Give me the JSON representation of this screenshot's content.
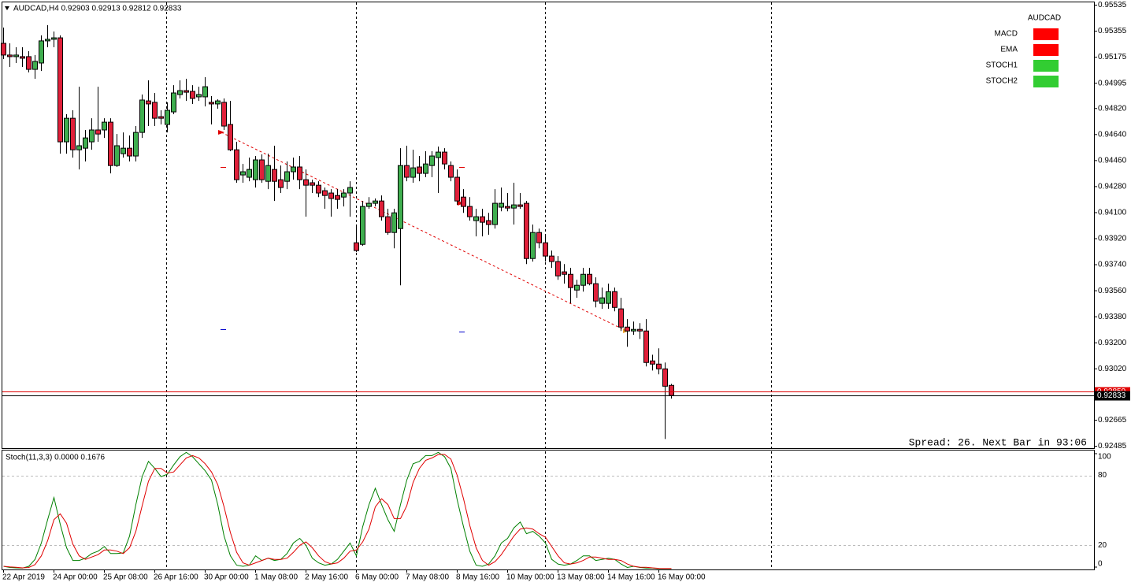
{
  "chart_data": [
    {
      "type": "candlestick",
      "title": "AUDCAD,H4  0.92903 0.92913 0.92812 0.92833",
      "categories": [
        "22 Apr 2019",
        null,
        null,
        null,
        null,
        null,
        null,
        null,
        "24 Apr 00:00",
        null,
        null,
        null,
        null,
        null,
        null,
        null,
        "25 Apr 08:00",
        null,
        null,
        null,
        null,
        null,
        null,
        null,
        "26 Apr 16:00",
        null,
        null,
        null,
        null,
        null,
        null,
        null,
        "30 Apr 00:00",
        null,
        null,
        null,
        null,
        null,
        null,
        null,
        "1 May 08:00",
        null,
        null,
        null,
        null,
        null,
        null,
        null,
        "2 May 16:00",
        null,
        null,
        null,
        null,
        null,
        null,
        null,
        "6 May 00:00",
        null,
        null,
        null,
        null,
        null,
        null,
        null,
        "7 May 08:00",
        null,
        null,
        null,
        null,
        null,
        null,
        null,
        "8 May 16:00",
        null,
        null,
        null,
        null,
        null,
        null,
        null,
        "10 May 00:00",
        null,
        null,
        null,
        null,
        null,
        null,
        null,
        "13 May 08:00",
        null,
        null,
        null,
        null,
        null,
        null,
        null,
        "14 May 16:00",
        null,
        null,
        null,
        null,
        null,
        null,
        null,
        "16 May 00:00",
        null,
        null
      ],
      "open": [
        0.95268,
        0.95187,
        0.95176,
        0.95176,
        0.95176,
        0.95088,
        0.95132,
        0.95285,
        0.95296,
        0.95306,
        0.94587,
        0.9475,
        0.94532,
        0.94543,
        0.94587,
        0.94669,
        0.94669,
        0.94723,
        0.94423,
        0.94505,
        0.94543,
        0.94489,
        0.94652,
        0.9487,
        0.9486,
        0.94761,
        0.94707,
        0.94794,
        0.94914,
        0.94941,
        0.94936,
        0.94898,
        0.94898,
        0.9486,
        0.94849,
        0.9486,
        0.94707,
        0.94532,
        0.94358,
        0.94342,
        0.94325,
        0.94462,
        0.94314,
        0.94396,
        0.94325,
        0.94314,
        0.9438,
        0.94413,
        0.94325,
        0.94304,
        0.94287,
        0.94249,
        0.94233,
        0.94216,
        0.94205,
        0.94233,
        0.93889,
        0.93878,
        0.9414,
        0.94162,
        0.94178,
        0.94069,
        0.9396,
        0.93987,
        0.94423,
        0.94342,
        0.94413,
        0.94369,
        0.94423,
        0.94478,
        0.94516,
        0.94423,
        0.94342,
        0.94205,
        0.9414,
        0.94042,
        0.94069,
        0.94042,
        0.94015,
        0.94135,
        0.9414,
        0.94129,
        0.94151,
        0.94162,
        0.9378,
        0.9396,
        0.93889,
        0.93797,
        0.93759,
        0.93688,
        0.93671,
        0.93562,
        0.93595,
        0.93671,
        0.93606,
        0.9347,
        0.9347,
        0.93551,
        0.93432,
        0.93306,
        0.93279,
        0.9329,
        0.93279,
        0.93072,
        0.9305,
        0.93017,
        0.92903
      ],
      "high": [
        0.95377,
        0.95268,
        0.95241,
        0.95241,
        0.95214,
        0.95187,
        0.95323,
        0.95394,
        0.9535,
        0.95323,
        0.94778,
        0.94805,
        0.94968,
        0.94669,
        0.9475,
        0.94968,
        0.9475,
        0.9475,
        0.94641,
        0.94652,
        0.94631,
        0.94696,
        0.94914,
        0.95012,
        0.94925,
        0.94805,
        0.9486,
        0.94979,
        0.95012,
        0.95023,
        0.94979,
        0.94968,
        0.95034,
        0.94903,
        0.94881,
        0.94887,
        0.9487,
        0.94587,
        0.94434,
        0.94478,
        0.94489,
        0.945,
        0.94505,
        0.9456,
        0.94423,
        0.94451,
        0.94478,
        0.94489,
        0.94396,
        0.94325,
        0.94314,
        0.94271,
        0.9426,
        0.9426,
        0.9426,
        0.94314,
        0.94015,
        0.94178,
        0.94205,
        0.94195,
        0.94216,
        0.94124,
        0.94124,
        0.94543,
        0.9456,
        0.94532,
        0.94489,
        0.94522,
        0.94522,
        0.94554,
        0.94543,
        0.94451,
        0.94396,
        0.9426,
        0.94205,
        0.94124,
        0.94124,
        0.94096,
        0.9426,
        0.94271,
        0.94233,
        0.94304,
        0.94233,
        0.94178,
        0.94015,
        0.93987,
        0.93944,
        0.93835,
        0.93797,
        0.93742,
        0.93715,
        0.93633,
        0.93715,
        0.93715,
        0.9365,
        0.93579,
        0.93606,
        0.93579,
        0.93508,
        0.93361,
        0.93344,
        0.93333,
        0.93361,
        0.93115,
        0.93159,
        0.93061,
        0.92913
      ],
      "low": [
        0.95159,
        0.95105,
        0.95132,
        0.95105,
        0.95067,
        0.95023,
        0.95077,
        0.95241,
        0.95241,
        0.94505,
        0.94505,
        0.94478,
        0.94396,
        0.94451,
        0.94532,
        0.94587,
        0.94614,
        0.94369,
        0.94413,
        0.94478,
        0.94451,
        0.94451,
        0.94614,
        0.94696,
        0.94696,
        0.94707,
        0.94652,
        0.94778,
        0.94887,
        0.9487,
        0.94849,
        0.9487,
        0.94832,
        0.94707,
        0.94816,
        0.94669,
        0.94522,
        0.94304,
        0.94304,
        0.94314,
        0.94271,
        0.94304,
        0.9426,
        0.94178,
        0.94233,
        0.9426,
        0.94325,
        0.9426,
        0.94069,
        0.94233,
        0.94205,
        0.94124,
        0.94069,
        0.94124,
        0.9414,
        0.94069,
        0.93824,
        0.93868,
        0.94124,
        0.9414,
        0.94042,
        0.93944,
        0.93851,
        0.93595,
        0.94314,
        0.94304,
        0.94314,
        0.94342,
        0.94342,
        0.94233,
        0.94396,
        0.94314,
        0.94151,
        0.94096,
        0.94042,
        0.93933,
        0.93933,
        0.93944,
        0.93987,
        0.94107,
        0.94107,
        0.94015,
        0.94124,
        0.93742,
        0.93759,
        0.93851,
        0.93759,
        0.93715,
        0.93633,
        0.93606,
        0.9347,
        0.93508,
        0.93551,
        0.93595,
        0.93442,
        0.93432,
        0.93432,
        0.93415,
        0.93279,
        0.9317,
        0.93252,
        0.93224,
        0.93034,
        0.93006,
        0.92979,
        0.92532,
        0.92812
      ],
      "close": [
        0.95187,
        0.95176,
        0.95187,
        0.95165,
        0.95088,
        0.95143,
        0.95285,
        0.95296,
        0.95306,
        0.94587,
        0.9475,
        0.94532,
        0.9456,
        0.94614,
        0.94669,
        0.94641,
        0.94723,
        0.94423,
        0.9456,
        0.94543,
        0.94489,
        0.94652,
        0.94876,
        0.94849,
        0.9475,
        0.9475,
        0.94805,
        0.94925,
        0.94941,
        0.9493,
        0.94887,
        0.94914,
        0.94968,
        0.94849,
        0.9487,
        0.94696,
        0.94532,
        0.94325,
        0.9438,
        0.94396,
        0.94462,
        0.94325,
        0.94423,
        0.94314,
        0.94271,
        0.9438,
        0.94413,
        0.94325,
        0.94287,
        0.94287,
        0.94233,
        0.94216,
        0.94195,
        0.94189,
        0.94233,
        0.94271,
        0.93835,
        0.9414,
        0.94162,
        0.94178,
        0.94069,
        0.9396,
        0.94096,
        0.94423,
        0.94342,
        0.94407,
        0.94369,
        0.94434,
        0.94489,
        0.94516,
        0.94434,
        0.94342,
        0.94178,
        0.9414,
        0.94069,
        0.94069,
        0.94031,
        0.94015,
        0.94162,
        0.94162,
        0.94129,
        0.94151,
        0.9414,
        0.9378,
        0.9396,
        0.93889,
        0.93797,
        0.93759,
        0.9366,
        0.93671,
        0.93579,
        0.93595,
        0.93671,
        0.93606,
        0.93486,
        0.93508,
        0.93551,
        0.93442,
        0.93306,
        0.93279,
        0.9329,
        0.93279,
        0.93061,
        0.9305,
        0.93017,
        0.92897,
        0.92833
      ],
      "up_color": "#3fae4f",
      "down_color": "#e0203a",
      "ylim": [
        0.92485,
        0.95535
      ],
      "yticks": [
        0.95535,
        0.95355,
        0.95175,
        0.94995,
        {
          "value": 0.9482,
          "label": "0.94820"
        },
        {
          "value": 0.9464,
          "label": "0.94640"
        },
        {
          "value": 0.9446,
          "label": "0.94460"
        },
        {
          "value": 0.9428,
          "label": "0.94280"
        },
        {
          "value": 0.941,
          "label": "0.94100"
        },
        {
          "value": 0.9392,
          "label": "0.93920"
        },
        {
          "value": 0.9374,
          "label": "0.93740"
        },
        {
          "value": 0.9356,
          "label": "0.93560"
        },
        {
          "value": 0.9338,
          "label": "0.93380"
        },
        {
          "value": 0.932,
          "label": "0.93200"
        },
        {
          "value": 0.9302,
          "label": "0.93020"
        },
        0.92665,
        0.92485
      ],
      "lines": [
        {
          "value": 0.92859,
          "color": "#e00000"
        },
        {
          "value": 0.92833,
          "color": "#000000"
        }
      ]
    },
    {
      "type": "line",
      "title": "Stoch(11,3,3) 0.0000 0.1676",
      "series": [
        {
          "color": "#008000",
          "values": [
            2,
            1,
            0.7,
            0.5,
            2,
            8,
            22,
            42,
            61,
            38,
            18,
            7,
            7,
            9,
            13,
            15,
            19,
            13,
            13,
            13.5,
            28,
            55,
            79,
            92,
            86,
            79,
            81,
            89,
            96,
            99.8,
            96,
            90,
            84,
            76,
            55,
            28,
            11,
            3,
            2,
            3,
            11,
            7,
            9,
            7,
            8,
            13,
            22,
            26,
            20,
            9,
            5,
            3,
            4,
            8,
            15,
            22,
            11,
            36,
            55,
            69,
            55,
            42,
            32,
            55,
            76,
            90,
            92,
            97,
            97,
            99.8,
            96,
            86,
            59,
            36,
            15,
            3,
            2,
            4,
            11,
            22,
            26,
            35,
            40,
            30,
            32,
            28,
            22,
            8,
            4,
            3,
            4,
            7,
            11,
            11,
            7,
            8,
            9,
            8,
            4,
            1,
            2,
            1,
            0.5,
            0.5,
            0,
            0,
            0
          ]
        },
        {
          "color": "#e00000",
          "values": [
            2,
            1.5,
            1.2,
            0.7,
            1,
            3.5,
            11,
            24,
            42,
            47,
            39,
            21,
            11,
            8,
            10,
            12,
            16,
            16,
            15,
            13,
            18,
            32,
            54,
            75,
            86,
            86,
            82,
            83,
            89,
            95,
            97,
            95,
            90,
            83,
            72,
            53,
            31,
            14,
            5,
            3,
            5,
            7,
            9,
            8,
            8,
            9,
            14,
            20,
            23,
            18,
            11,
            6,
            4,
            5,
            9,
            15,
            16,
            23,
            34,
            53,
            60,
            55,
            43,
            43,
            54,
            74,
            86,
            93,
            95,
            98,
            98,
            94,
            80,
            60,
            37,
            18,
            7,
            3,
            6,
            12,
            20,
            28,
            34,
            35,
            34,
            30,
            27,
            19,
            11,
            5,
            4,
            5,
            7,
            10,
            10,
            9,
            8,
            8,
            7,
            4,
            2,
            1.3,
            1.2,
            0.7,
            0.3,
            0.2,
            0.1676
          ]
        }
      ],
      "ylim": [
        0,
        100
      ],
      "yticks": [
        0,
        20,
        80,
        100
      ]
    }
  ],
  "signal_panel": {
    "title": "AUDCAD",
    "items": [
      {
        "name": "MACD",
        "color": "#ff0000"
      },
      {
        "name": "EMA",
        "color": "#ff0000"
      },
      {
        "name": "STOCH1",
        "color": "#32cd32"
      },
      {
        "name": "STOCH2",
        "color": "#32cd32"
      }
    ]
  },
  "status": "Spread: 26. Next Bar in 93:06"
}
